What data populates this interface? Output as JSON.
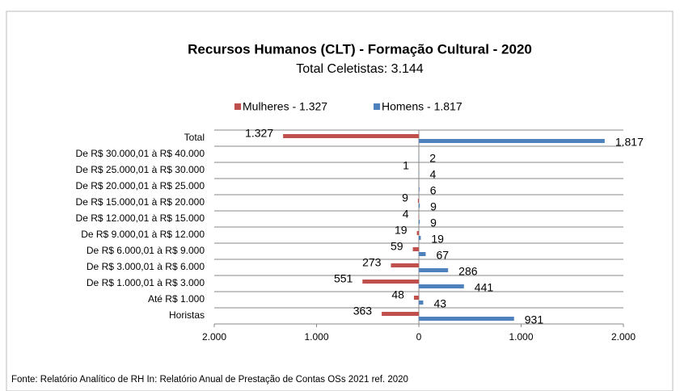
{
  "chart_data": {
    "type": "butterfly-bar",
    "title": "Recursos Humanos (CLT) - Formação Cultural - 2020",
    "subtitle": "Total Celetistas: 3.144",
    "note": "Fonte: Relatório Analítico de RH In: Relatório Anual de Prestação de Contas OSs 2021 ref. 2020",
    "categories": [
      "Total",
      "De R$ 30.000,01 à R$ 40.000",
      "De R$ 25.000,01 à R$ 30.000",
      "De R$ 20.000,01 à R$ 25.000",
      "De R$ 15.000,01 à R$ 20.000",
      "De R$ 12.000,01 à R$ 15.000",
      "De R$ 9.000,01 à R$ 12.000",
      "De R$ 6.000,01 à R$ 9.000",
      "De R$ 3.000,01 à R$ 6.000",
      "De R$ 1.000,01 à R$ 3.000",
      "Até R$ 1.000",
      "Horistas"
    ],
    "series": [
      {
        "name": "Mulheres - 1.327",
        "color": "#c0504d",
        "values": [
          -1327,
          0,
          -1,
          0,
          -9,
          -4,
          -19,
          -59,
          -273,
          -551,
          -48,
          -363
        ],
        "value_labels": [
          "1.327",
          null,
          "1",
          null,
          "9",
          "4",
          "19",
          "59",
          "273",
          "551",
          "48",
          "363"
        ]
      },
      {
        "name": "Homens - 1.817",
        "color": "#4f81bd",
        "values": [
          1817,
          2,
          4,
          6,
          9,
          9,
          19,
          67,
          286,
          441,
          43,
          931
        ],
        "value_labels": [
          "1.817",
          "2",
          "4",
          "6",
          "9",
          "9",
          "19",
          "67",
          "286",
          "441",
          "43",
          "931"
        ]
      }
    ],
    "xlim": [
      -2000,
      2000
    ],
    "xticks": [
      {
        "value": -2000,
        "label": "2.000"
      },
      {
        "value": -1000,
        "label": "1.000"
      },
      0,
      {
        "value": 1000,
        "label": "1.000"
      },
      {
        "value": 2000,
        "label": "2.000"
      }
    ],
    "legend": "top"
  }
}
